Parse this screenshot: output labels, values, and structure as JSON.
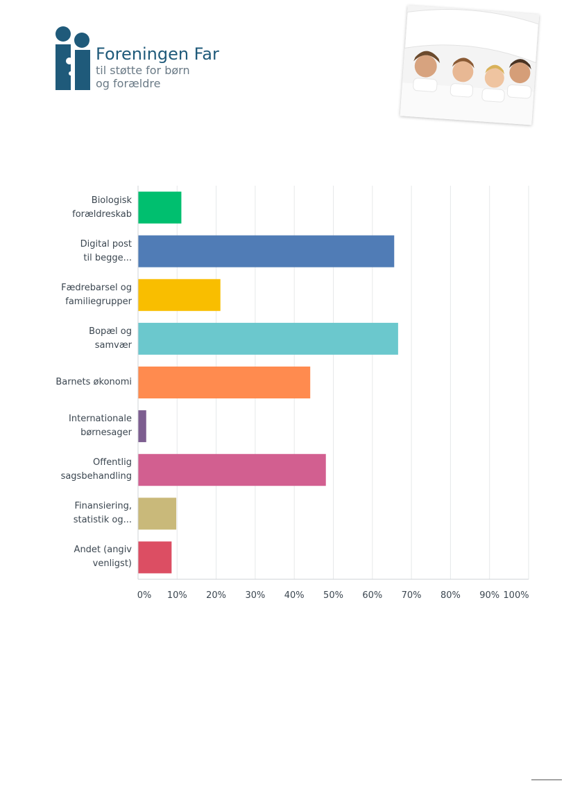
{
  "header": {
    "org_name": "Foreningen Far",
    "org_tagline_1": "til støtte for børn",
    "org_tagline_2": "og forældre"
  },
  "chart_data": {
    "type": "bar",
    "orientation": "horizontal",
    "title": "",
    "xlabel": "",
    "ylabel": "",
    "xlim": [
      0,
      100
    ],
    "grid": true,
    "categories": [
      [
        "Biologisk",
        "forældreskab"
      ],
      [
        "Digital post",
        "til begge..."
      ],
      [
        "Fædrebarsel og",
        "familiegrupper"
      ],
      [
        "Bopæl og",
        "samvær"
      ],
      [
        "Barnets økonomi"
      ],
      [
        "Internationale",
        "børnesager"
      ],
      [
        "Offentlig",
        "sagsbehandling"
      ],
      [
        "Finansiering,",
        "statistik og..."
      ],
      [
        "Andet (angiv",
        "venligst)"
      ]
    ],
    "values": [
      11,
      65.5,
      21,
      66.5,
      44,
      2,
      48,
      9.7,
      8.5
    ],
    "colors": [
      "#00bf6f",
      "#507cb6",
      "#f9be00",
      "#6bc8cd",
      "#ff8b4f",
      "#7d5e90",
      "#d25f90",
      "#c9b97a",
      "#dc4e63"
    ],
    "tick_labels": [
      "0%",
      "10%",
      "20%",
      "30%",
      "40%",
      "50%",
      "60%",
      "70%",
      "80%",
      "90%",
      "100%"
    ]
  }
}
